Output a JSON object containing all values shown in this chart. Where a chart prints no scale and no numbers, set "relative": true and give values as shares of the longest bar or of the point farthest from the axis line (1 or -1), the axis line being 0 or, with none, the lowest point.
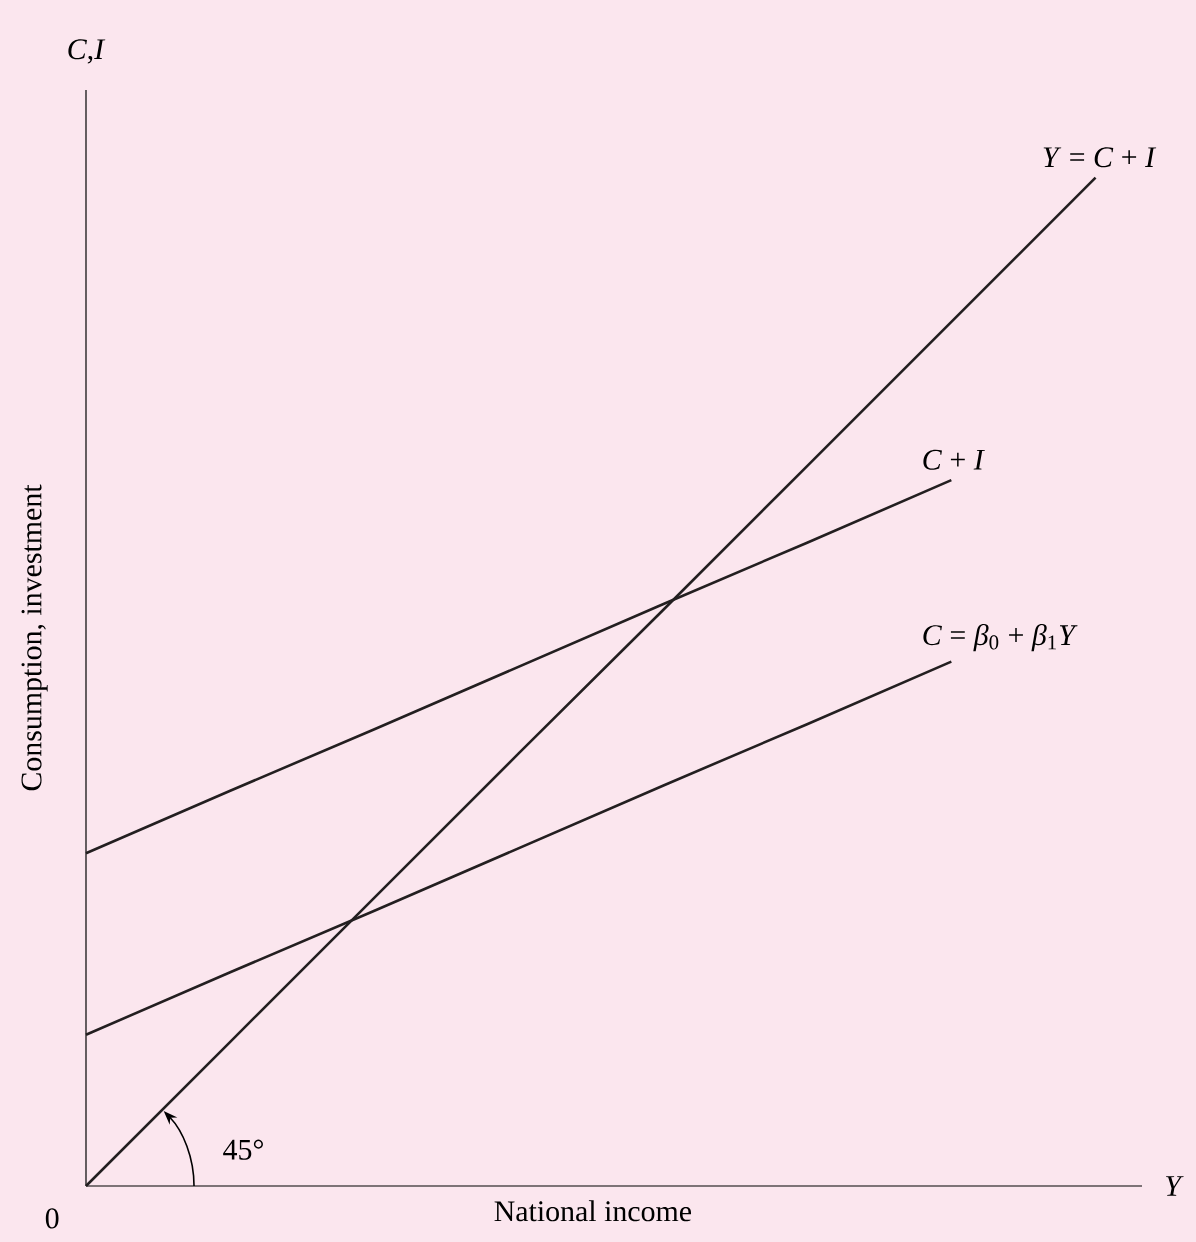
{
  "chart_data": {
    "type": "line",
    "relative": true,
    "xlabel": "National income",
    "ylabel": "Consumption, investment",
    "annotations": [
      "*C*,*I*",
      "*Y*",
      "45°",
      "0"
    ],
    "categories": [
      null,
      null,
      null,
      null,
      null,
      null,
      null,
      null
    ],
    "series": [
      {
        "name": "*Y* = *C* + *I*",
        "color": "#231f20",
        "values": [
          0,
          0.143,
          0.286,
          0.429,
          0.571,
          0.714,
          0.857,
          1
        ]
      },
      {
        "name": "*C* + *I*",
        "color": "#231f20",
        "values": [
          0.33,
          0.392,
          0.453,
          0.515,
          0.577,
          0.638,
          0.7,
          null
        ]
      },
      {
        "name": "*C* = *β*$_{0}$ + *β*$_{1}$*Y*",
        "color": "#231f20",
        "values": [
          0.15,
          0.212,
          0.273,
          0.335,
          0.397,
          0.458,
          0.52,
          null
        ]
      }
    ]
  }
}
